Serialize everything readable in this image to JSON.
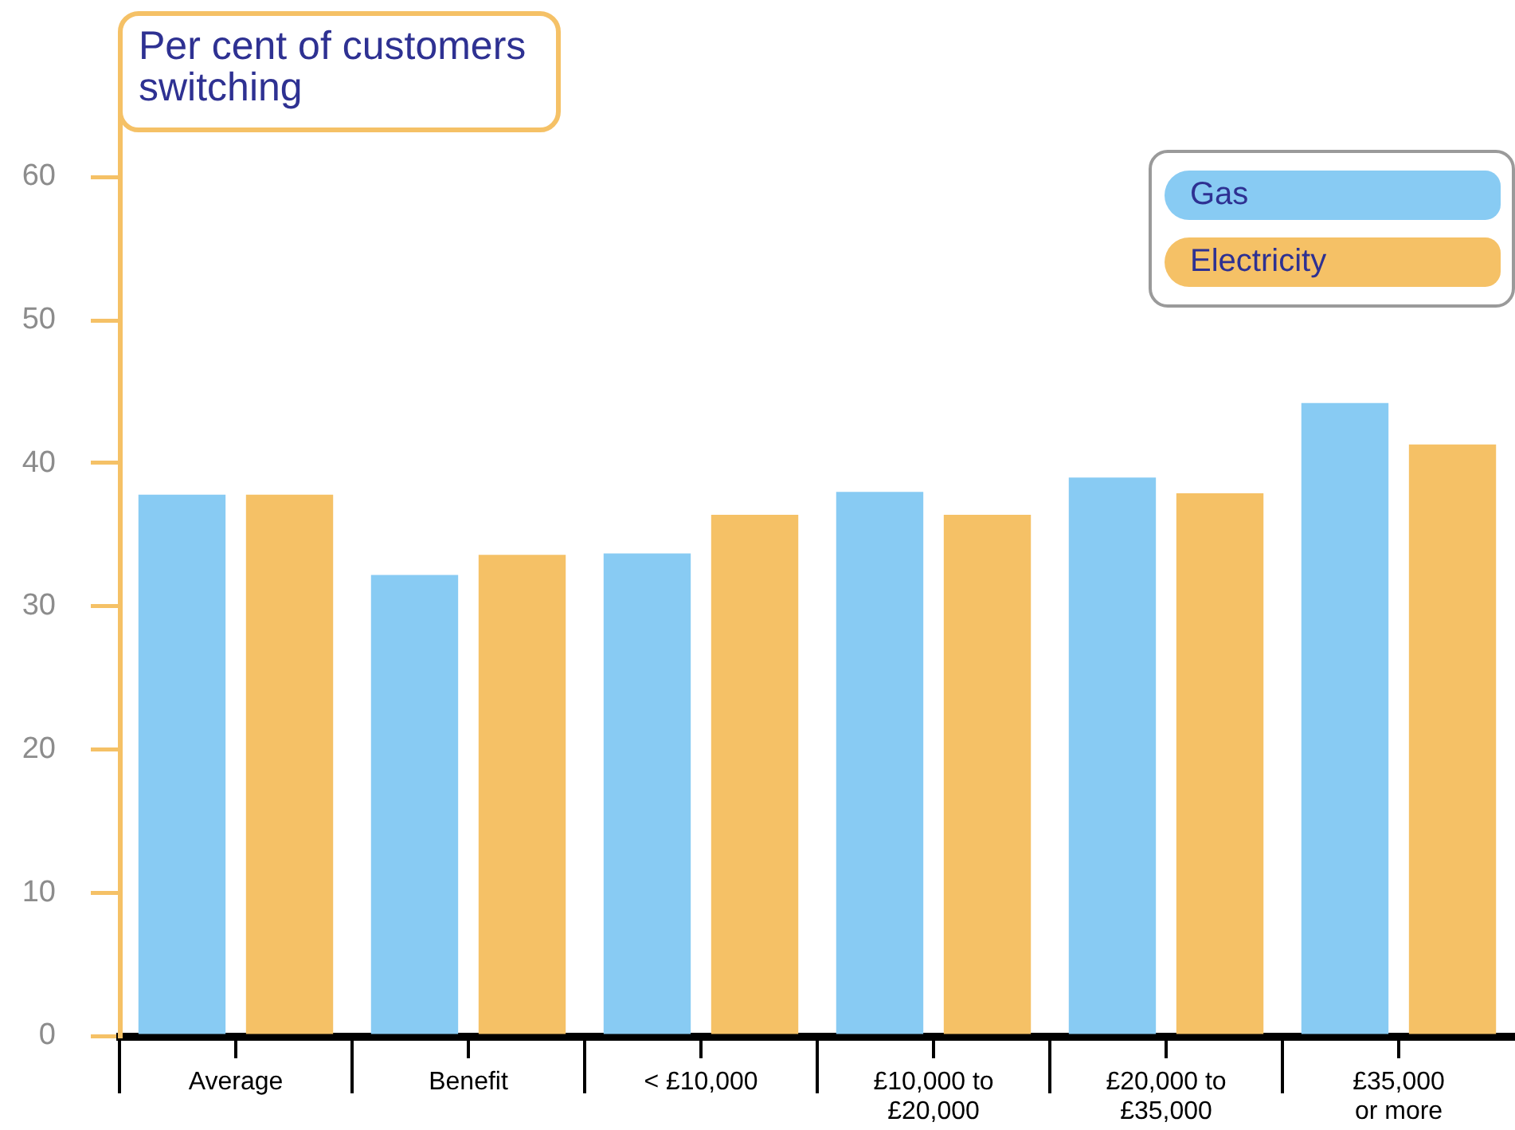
{
  "chart_data": {
    "type": "bar",
    "ylabel": "Per cent of customers switching",
    "categories": [
      "Average",
      "Benefit",
      "< £10,000",
      "£10,000 to\n£20,000",
      "£20,000 to\n£35,000",
      "£35,000\nor more"
    ],
    "series": [
      {
        "name": "Gas",
        "color": "#88cbf3",
        "values": [
          37.8,
          32.2,
          33.7,
          38.0,
          39.0,
          44.2
        ]
      },
      {
        "name": "Electricity",
        "color": "#f5c166",
        "values": [
          37.8,
          33.6,
          36.4,
          36.4,
          37.9,
          41.3
        ]
      }
    ],
    "ylim": [
      0,
      65
    ],
    "yticks": [
      0,
      10,
      20,
      30,
      40,
      50,
      60
    ],
    "legend": "top right"
  }
}
